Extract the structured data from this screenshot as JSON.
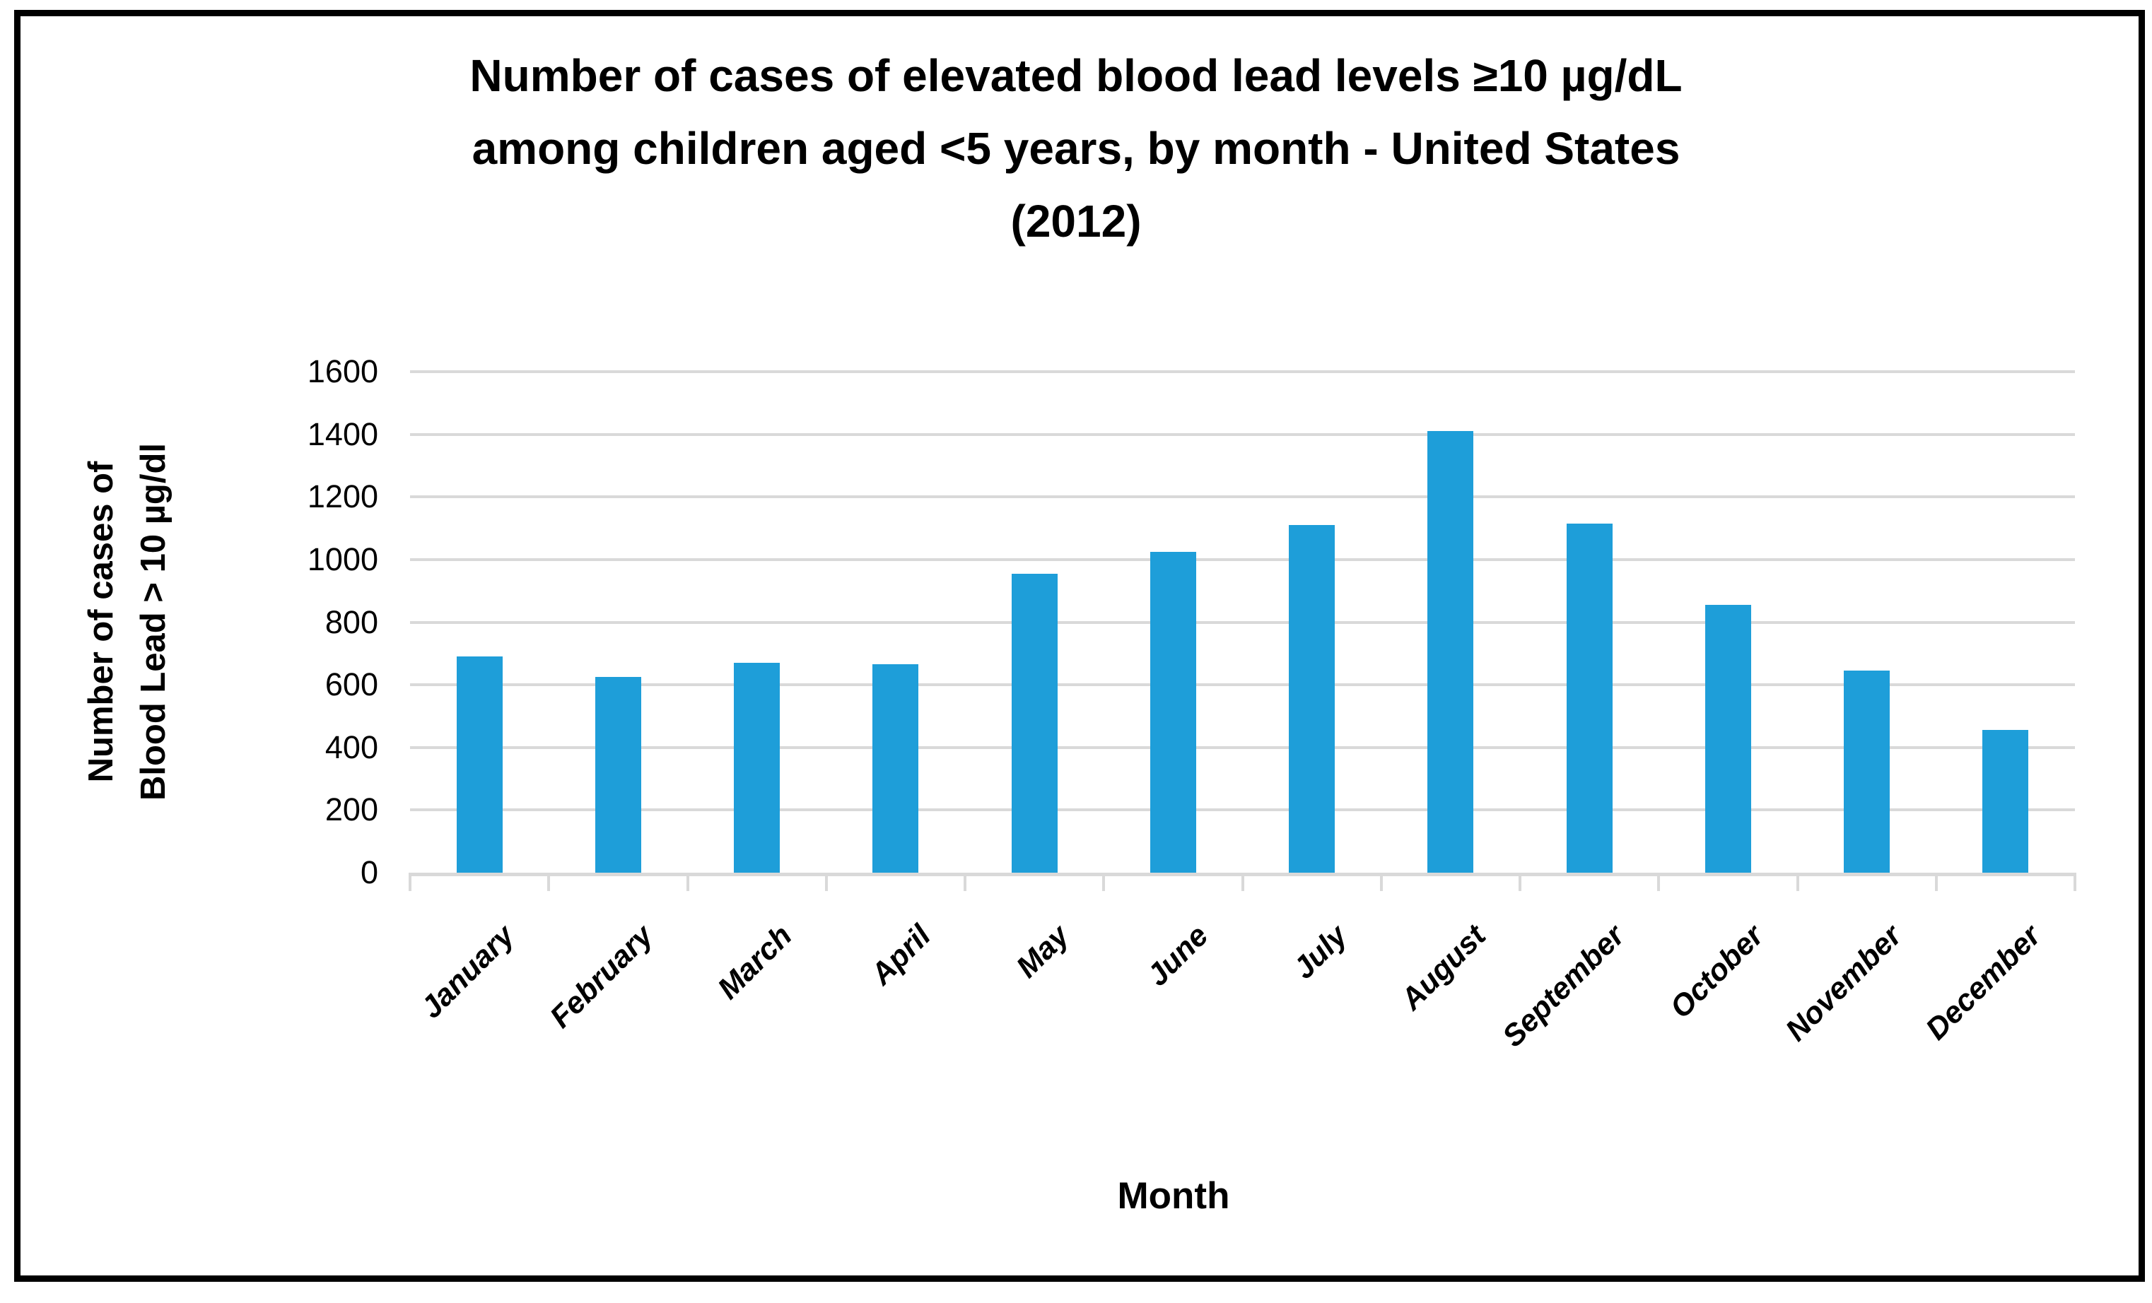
{
  "chart_data": {
    "type": "bar",
    "title": "Number of cases of elevated blood lead levels ≥10 µg/dL among children aged <5 years, by month  - United States (2012)",
    "title_lines": [
      "Number of cases of elevated blood lead levels ≥10 µg/dL",
      "among children aged <5 years, by month  - United States",
      "(2012)"
    ],
    "categories": [
      "January",
      "February",
      "March",
      "April",
      "May",
      "June",
      "July",
      "August",
      "September",
      "October",
      "November",
      "December"
    ],
    "values": [
      690,
      625,
      670,
      665,
      955,
      1025,
      1110,
      1410,
      1115,
      855,
      645,
      455
    ],
    "xlabel": "Month",
    "ylabel": "Number of cases of Blood Lead > 10 µg/dl",
    "ylabel_lines": [
      "Number of cases of",
      "Blood Lead > 10 µg/dl"
    ],
    "ylim": [
      0,
      1600
    ],
    "yticks": [
      0,
      200,
      400,
      600,
      800,
      1000,
      1200,
      1400,
      1600
    ],
    "grid": "horizontal",
    "legend": "none",
    "colors": {
      "bar": "#1E9ED9",
      "gridline": "#D9D9D9",
      "axis": "#D9D9D9",
      "text": "#000000",
      "frame_border": "#000000",
      "background": "#FFFFFF"
    }
  }
}
